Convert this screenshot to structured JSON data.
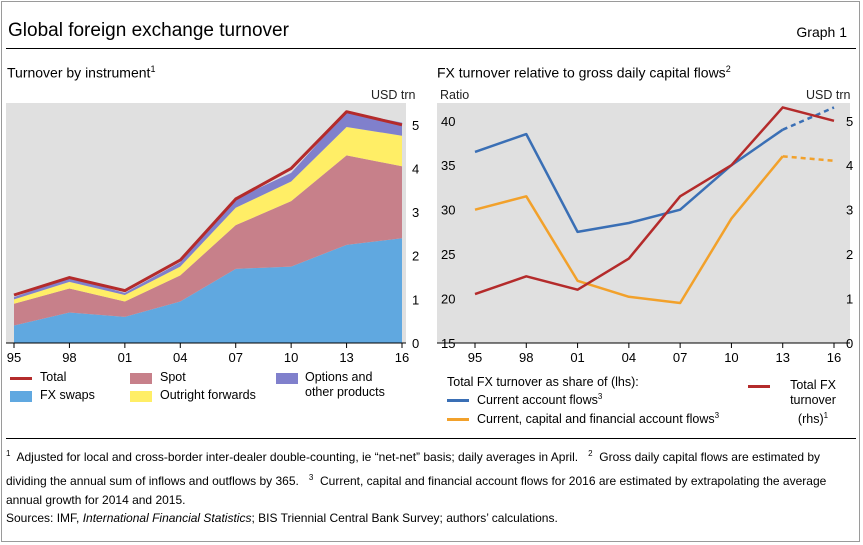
{
  "title": "Global foreign exchange turnover",
  "graph_label": "Graph 1",
  "left_panel": {
    "subtitle": "Turnover by instrument",
    "subtitle_sup": "1",
    "unit_right": "USD trn",
    "legend": [
      {
        "label": "Total",
        "color": "#b42b2b",
        "kind": "line"
      },
      {
        "label": "Spot",
        "color": "#c7808a",
        "kind": "area"
      },
      {
        "label": "Options and other products",
        "color": "#8080cc",
        "kind": "area"
      },
      {
        "label": "FX swaps",
        "color": "#60a8e0",
        "kind": "area"
      },
      {
        "label": "Outright forwards",
        "color": "#ffee66",
        "kind": "area"
      }
    ]
  },
  "right_panel": {
    "subtitle": "FX turnover relative to gross daily capital flows",
    "subtitle_sup": "2",
    "unit_left": "Ratio",
    "unit_right": "USD trn",
    "legend_heading": "Total FX turnover as share of (lhs):",
    "legend": [
      {
        "label": "Current account flows",
        "sup": "3",
        "color": "#3a6fb5"
      },
      {
        "label": "Current, capital and financial account flows",
        "sup": "3",
        "color": "#f2a12b"
      },
      {
        "label": "Total FX turnover (rhs)",
        "sup": "1",
        "color": "#b42b2b"
      }
    ]
  },
  "notes": {
    "n1_num": "1",
    "n1_text": "Adjusted for local and cross-border inter-dealer double-counting, ie “net-net” basis; daily averages in April.",
    "n2_num": "2",
    "n2_text": "Gross daily capital flows are estimated by dividing the annual sum of inflows and outflows by 365.",
    "n3_num": "3",
    "n3_text": "Current, capital and financial account flows for 2016 are estimated by extrapolating the average annual growth for 2014 and 2015."
  },
  "sources": {
    "prefix": "Sources: IMF, ",
    "italic": "International Financial Statistics",
    "suffix": "; BIS Triennial Central Bank Survey; authors’ calculations."
  },
  "chart_data": [
    {
      "type": "area",
      "stacked": true,
      "title": "Turnover by instrument",
      "categories": [
        "95",
        "98",
        "01",
        "04",
        "07",
        "10",
        "13",
        "16"
      ],
      "ylabel_right": "USD trn",
      "ylim": [
        0,
        5.5
      ],
      "yticks": [
        0,
        1,
        2,
        3,
        4,
        5
      ],
      "grid": false,
      "series": [
        {
          "name": "FX swaps",
          "color": "#60a8e0",
          "values": [
            0.4,
            0.7,
            0.6,
            0.95,
            1.7,
            1.75,
            2.25,
            2.4
          ]
        },
        {
          "name": "Spot",
          "color": "#c7808a",
          "values": [
            0.5,
            0.55,
            0.35,
            0.6,
            1.0,
            1.5,
            2.05,
            1.65
          ]
        },
        {
          "name": "Outright forwards",
          "color": "#ffee66",
          "values": [
            0.1,
            0.15,
            0.15,
            0.2,
            0.4,
            0.45,
            0.65,
            0.7
          ]
        },
        {
          "name": "Options and other products",
          "color": "#8080cc",
          "values": [
            0.05,
            0.1,
            0.05,
            0.1,
            0.2,
            0.2,
            0.35,
            0.3
          ]
        }
      ],
      "total": {
        "name": "Total",
        "color": "#b42b2b",
        "values": [
          1.1,
          1.5,
          1.2,
          1.9,
          3.3,
          4.0,
          5.3,
          5.0
        ]
      }
    },
    {
      "type": "line",
      "title": "FX turnover relative to gross daily capital flows",
      "categories": [
        "95",
        "98",
        "01",
        "04",
        "07",
        "10",
        "13",
        "16"
      ],
      "ylabel_left": "Ratio",
      "ylabel_right": "USD trn",
      "ylim_left": [
        15,
        42
      ],
      "yticks_left": [
        15,
        20,
        25,
        30,
        35,
        40
      ],
      "ylim_right": [
        0,
        5.4
      ],
      "yticks_right": [
        0,
        1,
        2,
        3,
        4,
        5
      ],
      "grid": false,
      "series": [
        {
          "name": "Current account flows",
          "axis": "left",
          "color": "#3a6fb5",
          "values": [
            36.5,
            38.5,
            27.5,
            28.5,
            30.0,
            35.0,
            39.0,
            41.5
          ],
          "dashed_from_index": 6
        },
        {
          "name": "Current, capital and financial account flows",
          "axis": "left",
          "color": "#f2a12b",
          "values": [
            30.0,
            31.5,
            22.0,
            20.2,
            19.5,
            29.0,
            36.0,
            35.5
          ],
          "dashed_from_index": 6
        },
        {
          "name": "Total FX turnover",
          "axis": "right",
          "color": "#b42b2b",
          "values": [
            1.1,
            1.5,
            1.2,
            1.9,
            3.3,
            4.0,
            5.3,
            5.0
          ]
        }
      ]
    }
  ]
}
